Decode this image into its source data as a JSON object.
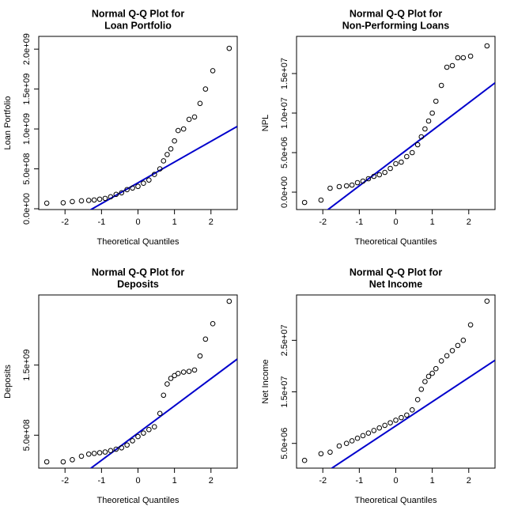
{
  "chart_data": [
    {
      "type": "qq",
      "title": [
        "Normal Q-Q Plot for",
        "Loan Portfolio"
      ],
      "x_label": "Theoretical Quantiles",
      "y_label": "Loan Portfolio",
      "xlim": [
        -2.72,
        2.72
      ],
      "xticks": [
        -2,
        -1,
        0,
        1,
        2
      ],
      "ylim": [
        -10000000,
        2160000000
      ],
      "yticks": [
        {
          "value": 0,
          "label": "0.0e+00"
        },
        {
          "value": 500000000,
          "label": "5.0e+08"
        },
        {
          "value": 1000000000,
          "label": "1.0e+09"
        },
        {
          "value": 1500000000,
          "label": "1.5e+09"
        },
        {
          "value": 2000000000,
          "label": "2.0e+09"
        }
      ],
      "x": [
        -2.5,
        -2.05,
        -1.8,
        -1.55,
        -1.35,
        -1.2,
        -1.05,
        -0.9,
        -0.75,
        -0.6,
        -0.45,
        -0.3,
        -0.15,
        0,
        0.15,
        0.3,
        0.45,
        0.6,
        0.7,
        0.8,
        0.9,
        1.0,
        1.1,
        1.25,
        1.4,
        1.55,
        1.7,
        1.85,
        2.05,
        2.5
      ],
      "values": [
        70000000,
        75000000,
        90000000,
        100000000,
        105000000,
        110000000,
        120000000,
        130000000,
        150000000,
        180000000,
        200000000,
        240000000,
        260000000,
        280000000,
        320000000,
        360000000,
        430000000,
        500000000,
        600000000,
        680000000,
        750000000,
        850000000,
        980000000,
        1000000000,
        1120000000,
        1150000000,
        1320000000,
        1500000000,
        1730000000,
        2010000000
      ],
      "point_color": "#000000",
      "line": {
        "intercept": 325000000,
        "slope": 260000000,
        "color": "#0000cc"
      }
    },
    {
      "type": "qq",
      "title": [
        "Normal Q-Q Plot for",
        "Non-Performing Loans"
      ],
      "x_label": "Theoretical Quantiles",
      "y_label": "NPL",
      "xlim": [
        -2.72,
        2.72
      ],
      "xticks": [
        -2,
        -1,
        0,
        1,
        2
      ],
      "ylim": [
        -2200000,
        19700000
      ],
      "yticks": [
        {
          "value": 0,
          "label": "0.0e+00"
        },
        {
          "value": 5000000,
          "label": "5.0e+06"
        },
        {
          "value": 10000000,
          "label": "1.0e+07"
        },
        {
          "value": 15000000,
          "label": "1.5e+07"
        }
      ],
      "x": [
        -2.5,
        -2.05,
        -1.8,
        -1.55,
        -1.35,
        -1.2,
        -1.05,
        -0.9,
        -0.75,
        -0.6,
        -0.45,
        -0.3,
        -0.15,
        0,
        0.15,
        0.3,
        0.45,
        0.6,
        0.7,
        0.8,
        0.9,
        1.0,
        1.1,
        1.25,
        1.4,
        1.55,
        1.7,
        1.85,
        2.05,
        2.5
      ],
      "values": [
        -1300000,
        -1000000,
        500000,
        700000,
        800000,
        900000,
        1200000,
        1400000,
        1700000,
        2000000,
        2200000,
        2500000,
        3000000,
        3600000,
        3800000,
        4500000,
        5000000,
        6000000,
        7000000,
        8000000,
        9000000,
        10000000,
        11500000,
        13500000,
        15800000,
        16000000,
        17000000,
        17000000,
        17200000,
        18500000
      ],
      "point_color": "#000000",
      "line": {
        "intercept": 4300000,
        "slope": 3500000,
        "color": "#0000cc"
      }
    },
    {
      "type": "qq",
      "title": [
        "Normal Q-Q Plot for",
        "Deposits"
      ],
      "x_label": "Theoretical Quantiles",
      "y_label": "Deposits",
      "xlim": [
        -2.72,
        2.72
      ],
      "xticks": [
        -2,
        -1,
        0,
        1,
        2
      ],
      "ylim": [
        30000000,
        2500000000
      ],
      "yticks": [
        {
          "value": 500000000,
          "label": "5.0e+08"
        },
        {
          "value": 1500000000,
          "label": "1.5e+09"
        }
      ],
      "x": [
        -2.5,
        -2.05,
        -1.8,
        -1.55,
        -1.35,
        -1.2,
        -1.05,
        -0.9,
        -0.75,
        -0.6,
        -0.45,
        -0.3,
        -0.15,
        0,
        0.15,
        0.3,
        0.45,
        0.6,
        0.7,
        0.8,
        0.9,
        1.0,
        1.1,
        1.25,
        1.4,
        1.55,
        1.7,
        1.85,
        2.05,
        2.5
      ],
      "values": [
        120000000,
        120000000,
        150000000,
        200000000,
        230000000,
        240000000,
        250000000,
        260000000,
        280000000,
        300000000,
        320000000,
        360000000,
        420000000,
        480000000,
        530000000,
        580000000,
        620000000,
        810000000,
        1070000000,
        1230000000,
        1310000000,
        1350000000,
        1380000000,
        1400000000,
        1410000000,
        1430000000,
        1630000000,
        1870000000,
        2090000000,
        2410000000
      ],
      "point_color": "#000000",
      "line": {
        "intercept": 530000000,
        "slope": 388000000,
        "color": "#0000cc"
      }
    },
    {
      "type": "qq",
      "title": [
        "Normal Q-Q Plot for",
        "Net Income"
      ],
      "x_label": "Theoretical Quantiles",
      "y_label": "Net Income",
      "xlim": [
        -2.72,
        2.72
      ],
      "xticks": [
        -2,
        -1,
        0,
        1,
        2
      ],
      "ylim": [
        200000,
        33800000
      ],
      "yticks": [
        {
          "value": 5000000,
          "label": "5.0e+06"
        },
        {
          "value": 15000000,
          "label": "1.5e+07"
        },
        {
          "value": 25000000,
          "label": "2.5e+07"
        }
      ],
      "x": [
        -2.5,
        -2.05,
        -1.8,
        -1.55,
        -1.35,
        -1.2,
        -1.05,
        -0.9,
        -0.75,
        -0.6,
        -0.45,
        -0.3,
        -0.15,
        0,
        0.15,
        0.3,
        0.45,
        0.6,
        0.7,
        0.8,
        0.9,
        1.0,
        1.1,
        1.25,
        1.4,
        1.55,
        1.7,
        1.85,
        2.05,
        2.5
      ],
      "values": [
        1700000,
        3000000,
        3300000,
        4500000,
        5000000,
        5500000,
        6000000,
        6500000,
        7000000,
        7500000,
        8000000,
        8500000,
        9000000,
        9500000,
        10000000,
        10500000,
        11500000,
        13500000,
        15500000,
        17000000,
        18000000,
        18600000,
        19500000,
        21000000,
        22000000,
        23000000,
        24000000,
        25000000,
        28000000,
        32600000
      ],
      "point_color": "#000000",
      "line": {
        "intercept": 8400000,
        "slope": 4680000,
        "color": "#0000cc"
      }
    }
  ]
}
